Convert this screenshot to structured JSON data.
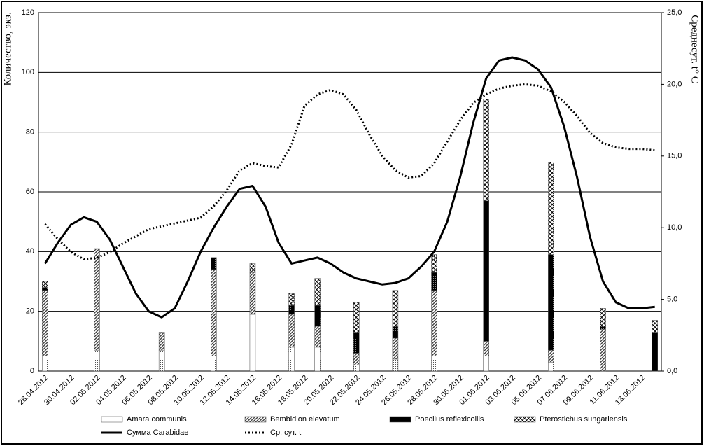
{
  "chart_data": {
    "type": "bar",
    "y_label": "Количество, экз.",
    "y2_label": "Среднесут. t° C",
    "categories": [
      "28.04.2012",
      null,
      "30.04.2012",
      null,
      "02.05.2012",
      null,
      "04.05.2012",
      null,
      "06.05.2012",
      null,
      "08.05.2012",
      null,
      "10.05.2012",
      null,
      "12.05.2012",
      null,
      "14.05.2012",
      null,
      "16.05.2012",
      null,
      "18.05.2012",
      null,
      "20.05.2012",
      null,
      "22.05.2012",
      null,
      "24.05.2012",
      null,
      "26.05.2012",
      null,
      "28.05.2012",
      null,
      "30.05.2012",
      null,
      "01.06.2012",
      null,
      "03.06.2012",
      null,
      "05.06.2012",
      null,
      "07.06.2012",
      null,
      "09.06.2012",
      null,
      "11.06.2012",
      null,
      "13.06.2012",
      null
    ],
    "ylim": [
      0,
      120
    ],
    "yticks": [
      0,
      20,
      40,
      60,
      80,
      100,
      120
    ],
    "y2lim": [
      0,
      25
    ],
    "y2ticks": [
      {
        "value": 0,
        "label": "0,0"
      },
      {
        "value": 5,
        "label": "5,0"
      },
      {
        "value": 10,
        "label": "10,0"
      },
      {
        "value": 15,
        "label": "15,0"
      },
      {
        "value": 20,
        "label": "20,0"
      },
      {
        "value": 25,
        "label": "25,0"
      }
    ],
    "grid": true,
    "legend": "bottom",
    "series": [
      {
        "name": "Amara communis",
        "type": "bar",
        "pattern": "dots",
        "color": "#000000",
        "values": [
          5,
          null,
          null,
          null,
          7,
          null,
          null,
          null,
          null,
          7,
          null,
          null,
          null,
          5,
          null,
          null,
          19,
          null,
          null,
          8,
          null,
          8,
          null,
          null,
          2,
          null,
          null,
          4,
          null,
          null,
          5,
          null,
          null,
          null,
          5,
          null,
          null,
          null,
          null,
          3,
          null,
          null,
          null,
          0,
          null,
          null,
          null,
          0
        ]
      },
      {
        "name": "Bembidion elevatum",
        "type": "bar",
        "pattern": "hatch",
        "color": "#000000",
        "values": [
          22,
          null,
          null,
          null,
          34,
          null,
          null,
          null,
          null,
          6,
          null,
          null,
          null,
          29,
          null,
          null,
          14,
          null,
          null,
          11,
          null,
          7,
          null,
          null,
          4,
          null,
          null,
          7,
          null,
          null,
          22,
          null,
          null,
          null,
          5,
          null,
          null,
          null,
          null,
          4,
          null,
          null,
          null,
          14,
          null,
          null,
          null,
          0
        ]
      },
      {
        "name": "Poecilus reflexicollis",
        "type": "bar",
        "pattern": "dark",
        "color": "#000000",
        "values": [
          1,
          null,
          null,
          null,
          0,
          null,
          null,
          null,
          null,
          0,
          null,
          null,
          null,
          4,
          null,
          null,
          0,
          null,
          null,
          3,
          null,
          7,
          null,
          null,
          7,
          null,
          null,
          4,
          null,
          null,
          6,
          null,
          null,
          null,
          47,
          null,
          null,
          null,
          null,
          32,
          null,
          null,
          null,
          1,
          null,
          null,
          null,
          13
        ]
      },
      {
        "name": "Pterostichus sungariensis",
        "type": "bar",
        "pattern": "cross",
        "color": "#000000",
        "values": [
          2,
          null,
          null,
          null,
          0,
          null,
          null,
          null,
          null,
          0,
          null,
          null,
          null,
          0,
          null,
          null,
          3,
          null,
          null,
          4,
          null,
          9,
          null,
          null,
          10,
          null,
          null,
          12,
          null,
          null,
          6,
          null,
          null,
          null,
          34,
          null,
          null,
          null,
          null,
          31,
          null,
          null,
          null,
          6,
          null,
          null,
          null,
          4
        ]
      },
      {
        "name": "Сумма Carabidae",
        "type": "line",
        "style": "solid",
        "color": "#000000",
        "values": [
          36,
          43,
          49,
          51.5,
          50,
          44,
          35,
          26,
          20,
          18,
          21,
          30,
          40,
          48,
          55,
          61,
          62,
          55,
          43,
          36,
          37,
          38,
          36,
          33,
          31,
          30,
          29,
          29.5,
          31,
          35,
          40,
          50,
          65,
          83,
          98,
          104,
          105,
          104,
          101,
          95,
          82,
          65,
          45,
          30,
          23,
          21,
          21,
          21.5
        ]
      },
      {
        "name": "Ср. сут. t",
        "type": "line",
        "style": "dotted",
        "axis": "y2",
        "color": "#000000",
        "values": [
          10.25,
          9.2,
          8.3,
          7.8,
          7.9,
          8.3,
          8.9,
          9.4,
          9.9,
          10.1,
          10.3,
          10.5,
          10.7,
          11.5,
          12.6,
          14.0,
          14.5,
          14.3,
          14.2,
          15.8,
          18.5,
          19.3,
          19.6,
          19.3,
          18.2,
          16.5,
          15.0,
          14.0,
          13.5,
          13.6,
          14.5,
          16.0,
          17.5,
          18.7,
          19.3,
          19.7,
          19.9,
          20.0,
          19.9,
          19.5,
          18.8,
          17.8,
          16.6,
          15.9,
          15.6,
          15.5,
          15.5,
          15.4
        ]
      }
    ]
  }
}
